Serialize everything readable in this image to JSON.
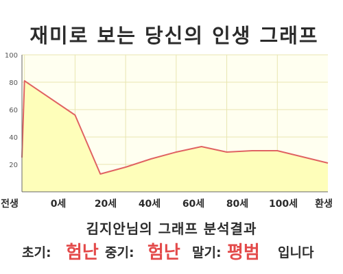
{
  "chart_data": {
    "type": "area",
    "title": "재미로 보는 당신의 인생 그래프",
    "categories": [
      "전생",
      "0세",
      "20세",
      "40세",
      "60세",
      "80세",
      "100세",
      "환생"
    ],
    "x": [
      -1,
      0,
      20,
      30,
      40,
      50,
      60,
      70,
      80,
      90,
      100,
      120
    ],
    "series": [
      {
        "values": [
          25,
          81,
          56,
          13,
          18,
          24,
          29,
          33,
          29,
          30,
          30,
          21
        ]
      }
    ],
    "yticks": [
      20,
      40,
      60,
      80,
      100
    ],
    "ylim": [
      0,
      100
    ],
    "grid": true,
    "line_color": "#e06262",
    "fill_color": "#fefeba",
    "plot_bg": "#fffff0"
  },
  "caption": "김지안님의 그래프 분석결과",
  "result": {
    "early_label": "초기:",
    "early_value": "험난",
    "middle_label": "중기:",
    "middle_value": "험난",
    "late_label": "말기:",
    "late_value": "평범",
    "suffix": "입니다"
  }
}
